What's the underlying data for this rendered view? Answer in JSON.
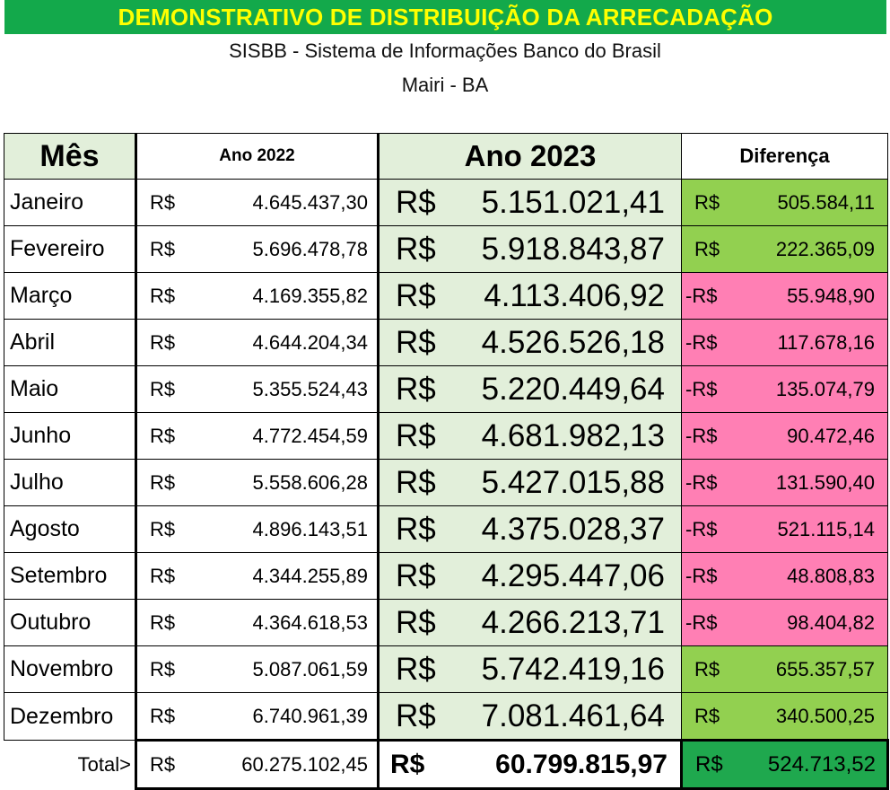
{
  "header": {
    "title": "DEMONSTRATIVO DE DISTRIBUIÇÃO DA ARRECADAÇÃO",
    "subtitle": "SISBB - Sistema de Informações Banco do Brasil",
    "location": "Mairi - BA"
  },
  "table": {
    "columns": [
      "Mês",
      "Ano 2022",
      "Ano 2023",
      "Diferença"
    ],
    "currency": "R$",
    "negative_currency": "-R$",
    "rows": [
      {
        "month": "Janeiro",
        "y2022": "4.645.437,30",
        "y2023": "5.151.021,41",
        "diff": "505.584,11",
        "negative": false
      },
      {
        "month": "Fevereiro",
        "y2022": "5.696.478,78",
        "y2023": "5.918.843,87",
        "diff": "222.365,09",
        "negative": false
      },
      {
        "month": "Março",
        "y2022": "4.169.355,82",
        "y2023": "4.113.406,92",
        "diff": "55.948,90",
        "negative": true
      },
      {
        "month": "Abril",
        "y2022": "4.644.204,34",
        "y2023": "4.526.526,18",
        "diff": "117.678,16",
        "negative": true
      },
      {
        "month": "Maio",
        "y2022": "5.355.524,43",
        "y2023": "5.220.449,64",
        "diff": "135.074,79",
        "negative": true
      },
      {
        "month": "Junho",
        "y2022": "4.772.454,59",
        "y2023": "4.681.982,13",
        "diff": "90.472,46",
        "negative": true
      },
      {
        "month": "Julho",
        "y2022": "5.558.606,28",
        "y2023": "5.427.015,88",
        "diff": "131.590,40",
        "negative": true
      },
      {
        "month": "Agosto",
        "y2022": "4.896.143,51",
        "y2023": "4.375.028,37",
        "diff": "521.115,14",
        "negative": true
      },
      {
        "month": "Setembro",
        "y2022": "4.344.255,89",
        "y2023": "4.295.447,06",
        "diff": "48.808,83",
        "negative": true
      },
      {
        "month": "Outubro",
        "y2022": "4.364.618,53",
        "y2023": "4.266.213,71",
        "diff": "98.404,82",
        "negative": true
      },
      {
        "month": "Novembro",
        "y2022": "5.087.061,59",
        "y2023": "5.742.419,16",
        "diff": "655.357,57",
        "negative": false
      },
      {
        "month": "Dezembro",
        "y2022": "6.740.961,39",
        "y2023": "7.081.461,64",
        "diff": "340.500,25",
        "negative": false
      }
    ],
    "total": {
      "label": "Total>",
      "y2022": "60.275.102,45",
      "y2023": "60.799.815,97",
      "diff": "524.713,52"
    }
  },
  "colors": {
    "banner": "#13a94b",
    "banner_text": "#ffff00",
    "light_green": "#e2efda",
    "positive": "#92d050",
    "negative": "#ff7fb4",
    "total_diff": "#1fa84e"
  }
}
